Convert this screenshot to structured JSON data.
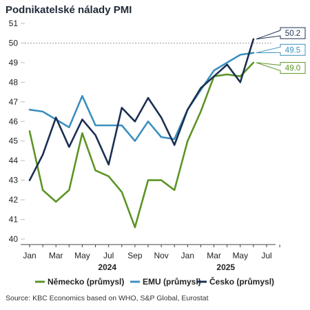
{
  "title": "Podnikatelské nálady PMI",
  "source": "Source: KBC Economics based on WHO, S&P Global, Eurostat",
  "colors": {
    "germany": "#5b9424",
    "emu": "#3b8fbe",
    "czech": "#1b2f52",
    "ref": "#9a9a9a"
  },
  "chart_data": {
    "type": "line",
    "title": "Podnikatelské nálady PMI",
    "ylim": [
      40,
      51
    ],
    "yticks": [
      "40",
      "41",
      "42",
      "43",
      "44",
      "45",
      "46",
      "47",
      "48",
      "49",
      "50",
      "51"
    ],
    "xtick_labels": [
      "Jan",
      "Mar",
      "May",
      "Jul",
      "Sep",
      "Nov",
      "Jan",
      "Mar",
      "May",
      "Jul"
    ],
    "xtick_positions": [
      0,
      2,
      4,
      6,
      8,
      10,
      12,
      14,
      16,
      18
    ],
    "year_labels": [
      {
        "label": "2024",
        "at": 5.9
      },
      {
        "label": "2025",
        "at": 14.9
      }
    ],
    "x_range": [
      0,
      18
    ],
    "reference_line": 50,
    "legend_position": "bottom",
    "series": [
      {
        "key": "germany",
        "name": "Německo (průmysl)",
        "values": [
          45.5,
          42.5,
          41.9,
          42.5,
          45.4,
          43.5,
          43.2,
          42.4,
          40.6,
          43.0,
          43.0,
          42.5,
          45.0,
          46.5,
          48.3,
          48.4,
          48.3,
          49.0
        ],
        "last_label": "49.0"
      },
      {
        "key": "emu",
        "name": "EMU (průmysl)",
        "values": [
          46.6,
          46.5,
          46.1,
          45.7,
          47.3,
          45.8,
          45.8,
          45.8,
          45.0,
          46.0,
          45.2,
          45.1,
          46.6,
          47.6,
          48.6,
          49.0,
          49.4,
          49.5
        ],
        "last_label": "49.5"
      },
      {
        "key": "czech",
        "name": "Česko (průmysl)",
        "values": [
          43.0,
          44.3,
          46.2,
          44.7,
          46.1,
          45.3,
          43.8,
          46.7,
          46.0,
          47.2,
          46.2,
          44.8,
          46.6,
          47.7,
          48.3,
          48.9,
          48.0,
          50.2
        ],
        "last_label": "50.2"
      }
    ]
  }
}
